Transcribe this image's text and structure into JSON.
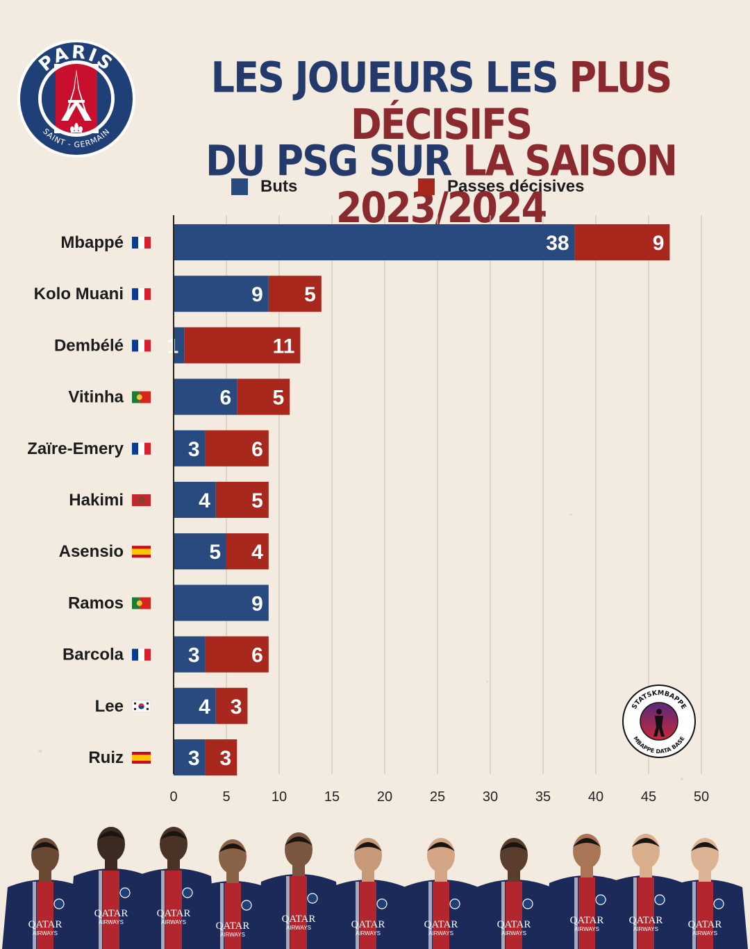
{
  "logo": {
    "top_text": "PARIS",
    "bottom_text": "SAINT - GERMAIN"
  },
  "title": {
    "line1_a": "LES JOUEURS LES ",
    "line1_b": "PLUS DÉCISIFS",
    "line2_a": "DU PSG SUR ",
    "line2_b": "LA SAISON 2023/2024"
  },
  "colors": {
    "buts": "#284a7e",
    "passes": "#a8281e",
    "title_blue": "#233a6b",
    "title_red": "#8a2a2f"
  },
  "badge": {
    "top_text": "STATSKMBAPPE",
    "bottom_text": "MBAPPE DATA BASE"
  },
  "sponsor": {
    "line1": "QATAR",
    "line2": "AIRWAYS"
  },
  "chart_data": {
    "type": "bar",
    "orientation": "horizontal",
    "stacked": true,
    "categories": [
      "Mbappé",
      "Kolo Muani",
      "Dembélé",
      "Vitinha",
      "Zaïre-Emery",
      "Hakimi",
      "Asensio",
      "Ramos",
      "Barcola",
      "Lee",
      "Ruiz"
    ],
    "flags": [
      "france",
      "france",
      "france",
      "portugal",
      "france",
      "morocco",
      "spain",
      "portugal",
      "france",
      "korea",
      "spain"
    ],
    "series": [
      {
        "name": "Buts",
        "values": [
          38,
          9,
          1,
          6,
          3,
          4,
          5,
          9,
          3,
          4,
          3
        ]
      },
      {
        "name": "Passes décisives",
        "values": [
          9,
          5,
          11,
          5,
          6,
          5,
          4,
          0,
          6,
          3,
          3
        ]
      }
    ],
    "xlim": [
      0,
      50
    ],
    "xticks": [
      0,
      5,
      10,
      15,
      20,
      25,
      30,
      35,
      40,
      45,
      50
    ],
    "grid": "vertical",
    "legend": "top"
  }
}
